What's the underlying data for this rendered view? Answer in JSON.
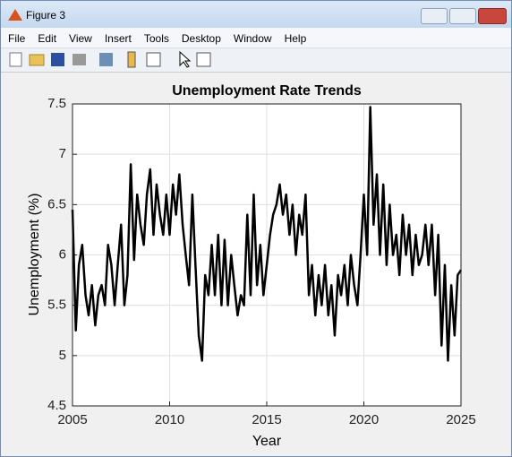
{
  "window": {
    "title": "Figure 3",
    "menu": [
      "File",
      "Edit",
      "View",
      "Insert",
      "Tools",
      "Desktop",
      "Window",
      "Help"
    ]
  },
  "chart_data": {
    "type": "line",
    "title": "Unemployment Rate Trends",
    "x_label": "Year",
    "y_label": "Unemployment (%)",
    "x": [
      2005,
      2005.17,
      2005.33,
      2005.5,
      2005.67,
      2005.83,
      2006,
      2006.17,
      2006.33,
      2006.5,
      2006.67,
      2006.83,
      2007,
      2007.17,
      2007.33,
      2007.5,
      2007.67,
      2007.83,
      2008,
      2008.17,
      2008.33,
      2008.5,
      2008.67,
      2008.83,
      2009,
      2009.17,
      2009.33,
      2009.5,
      2009.67,
      2009.83,
      2010,
      2010.17,
      2010.33,
      2010.5,
      2010.67,
      2010.83,
      2011,
      2011.17,
      2011.33,
      2011.5,
      2011.67,
      2011.83,
      2012,
      2012.17,
      2012.33,
      2012.5,
      2012.67,
      2012.83,
      2013,
      2013.17,
      2013.33,
      2013.5,
      2013.67,
      2013.83,
      2014,
      2014.17,
      2014.33,
      2014.5,
      2014.67,
      2014.83,
      2015,
      2015.17,
      2015.33,
      2015.5,
      2015.67,
      2015.83,
      2016,
      2016.17,
      2016.33,
      2016.5,
      2016.67,
      2016.83,
      2017,
      2017.17,
      2017.33,
      2017.5,
      2017.67,
      2017.83,
      2018,
      2018.17,
      2018.33,
      2018.5,
      2018.67,
      2018.83,
      2019,
      2019.17,
      2019.33,
      2019.5,
      2019.67,
      2019.83,
      2020,
      2020.17,
      2020.33,
      2020.5,
      2020.67,
      2020.83,
      2021,
      2021.17,
      2021.33,
      2021.5,
      2021.67,
      2021.83,
      2022,
      2022.17,
      2022.33,
      2022.5,
      2022.67,
      2022.83,
      2023,
      2023.17,
      2023.33,
      2023.5,
      2023.67,
      2023.83,
      2024,
      2024.17,
      2024.33,
      2024.5,
      2024.67,
      2024.83,
      2025
    ],
    "values": [
      6.45,
      5.25,
      5.9,
      6.1,
      5.6,
      5.4,
      5.7,
      5.3,
      5.6,
      5.7,
      5.5,
      6.1,
      5.9,
      5.5,
      5.9,
      6.3,
      5.5,
      5.8,
      6.9,
      5.95,
      6.6,
      6.3,
      6.1,
      6.6,
      6.85,
      6.2,
      6.7,
      6.4,
      6.2,
      6.6,
      6.2,
      6.7,
      6.4,
      6.8,
      6.3,
      6.0,
      5.7,
      6.6,
      5.9,
      5.2,
      4.95,
      5.8,
      5.6,
      6.1,
      5.6,
      6.2,
      5.5,
      6.15,
      5.5,
      6.0,
      5.7,
      5.4,
      5.6,
      5.5,
      6.4,
      5.6,
      6.6,
      5.7,
      6.1,
      5.6,
      5.9,
      6.2,
      6.4,
      6.5,
      6.7,
      6.4,
      6.6,
      6.2,
      6.5,
      6.0,
      6.4,
      6.2,
      6.6,
      5.6,
      5.9,
      5.4,
      5.8,
      5.5,
      5.9,
      5.4,
      5.7,
      5.2,
      5.8,
      5.6,
      5.9,
      5.5,
      6.0,
      5.7,
      5.5,
      6.0,
      6.6,
      6.0,
      7.47,
      6.3,
      6.8,
      6.0,
      6.7,
      5.9,
      6.5,
      6.0,
      6.2,
      5.8,
      6.4,
      6.0,
      6.3,
      5.8,
      6.2,
      5.9,
      6.0,
      6.3,
      5.9,
      6.3,
      5.6,
      6.2,
      5.1,
      5.9,
      4.95,
      5.7,
      5.2,
      5.8,
      5.85
    ],
    "color": "#000000",
    "xlim": [
      2005,
      2025
    ],
    "ylim": [
      4.5,
      7.5
    ],
    "xticks": [
      2005,
      2010,
      2015,
      2020,
      2025
    ],
    "yticks": [
      4.5,
      5,
      5.5,
      6,
      6.5,
      7,
      7.5
    ],
    "grid": true
  }
}
